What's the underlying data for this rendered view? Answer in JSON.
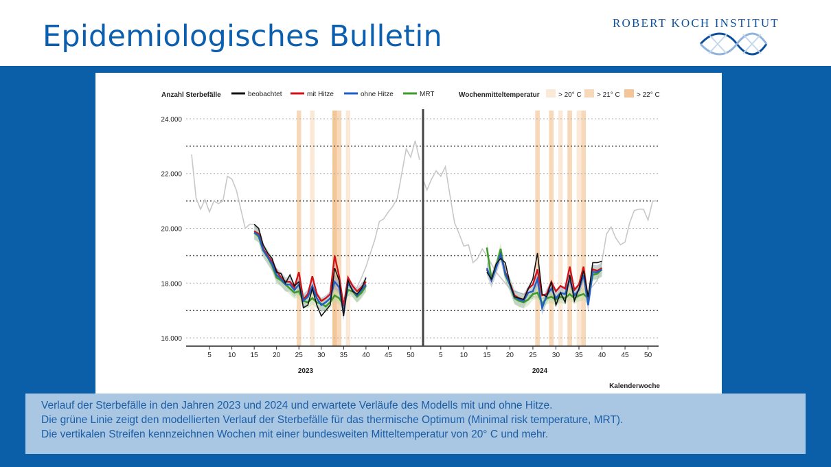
{
  "header": {
    "title": "Epidemiologisches Bulletin",
    "logo_text": "ROBERT KOCH INSTITUT"
  },
  "colors": {
    "title_blue": "#0b5fae",
    "band_blue": "#0a5fa8",
    "caption_bg": "#a9c6e2",
    "observed": "#111111",
    "with_heat": "#d0121b",
    "without_heat": "#1f5fc4",
    "mrt": "#3f9a2c",
    "history": "#c8c8c8",
    "stripe_20": "#fbe9d8",
    "stripe_21": "#f7d8b8",
    "stripe_22": "#f3c699"
  },
  "caption": {
    "line1": "Verlauf der Sterbefälle in den Jahren 2023 und 2024 und erwartete Verläufe des Modells mit und ohne Hitze.",
    "line2": "Die grüne Linie zeigt den modellierten Verlauf der Sterbefälle für das thermische Optimum (Minimal risk temperature, MRT).",
    "line3": "Die vertikalen Streifen kennzeichnen Wochen mit einer bundesweiten Mitteltemperatur von 20° C und mehr."
  },
  "chart_data": {
    "type": "line",
    "ylabel": "Anzahl Sterbefälle",
    "xlabel": "Kalenderwoche",
    "ylim": [
      15700,
      24300
    ],
    "yticks": [
      16000,
      18000,
      20000,
      22000,
      24000
    ],
    "ytick_labels": [
      "16.000",
      "18.000",
      "20.000",
      "22.000",
      "24.000"
    ],
    "legend": {
      "observed": "beobachtet",
      "with_heat": "mit Hitze",
      "without_heat": "ohne Hitze",
      "mrt": "MRT",
      "temp_title": "Wochenmitteltemperatur",
      "t20": "> 20° C",
      "t21": "> 21° C",
      "t22": "> 22° C"
    },
    "panels": [
      {
        "year": "2023",
        "xticks": [
          5,
          10,
          15,
          20,
          25,
          30,
          35,
          40,
          45,
          50
        ],
        "history_weeks": [
          1,
          2,
          3,
          4,
          5,
          6,
          7,
          8,
          9,
          10,
          11,
          12,
          13,
          14,
          15,
          16,
          17,
          18,
          19,
          20,
          21,
          22,
          23,
          24,
          25,
          26,
          27,
          28,
          29,
          30,
          31,
          32,
          33,
          34,
          35,
          36,
          37,
          38,
          39,
          40,
          41,
          42,
          43,
          44,
          45,
          46,
          47,
          48,
          49,
          50,
          51,
          52
        ],
        "history": [
          22700,
          21100,
          20700,
          21050,
          20600,
          21000,
          20900,
          21000,
          21900,
          21800,
          21400,
          20700,
          20000,
          20150,
          20150,
          19900,
          19300,
          19000,
          18500,
          18350,
          18250,
          18000,
          17800,
          17700,
          17600,
          17550,
          17500,
          17400,
          17400,
          17350,
          17350,
          17400,
          17500,
          17500,
          17450,
          17550,
          17700,
          17850,
          18200,
          18600,
          19100,
          19600,
          20250,
          20350,
          20600,
          20800,
          21100,
          22000,
          22900,
          22600,
          23200,
          22500
        ],
        "weeks": [
          15,
          16,
          17,
          18,
          19,
          20,
          21,
          22,
          23,
          24,
          25,
          26,
          27,
          28,
          29,
          30,
          31,
          32,
          33,
          34,
          35,
          36,
          37,
          38,
          39,
          40
        ],
        "observed": [
          20150,
          20000,
          19400,
          19100,
          18900,
          18400,
          18350,
          18000,
          18300,
          17900,
          18050,
          17100,
          17200,
          17800,
          17200,
          16800,
          17000,
          17200,
          18550,
          18100,
          16800,
          18100,
          17700,
          17600,
          17800,
          18200
        ],
        "with_heat": [
          19900,
          19800,
          19250,
          19000,
          18800,
          18450,
          18200,
          18050,
          18050,
          17850,
          18400,
          17400,
          17600,
          18250,
          17600,
          17350,
          17450,
          17600,
          19000,
          18250,
          17150,
          18200,
          17900,
          17700,
          17850,
          18050
        ],
        "without_heat": [
          19850,
          19750,
          19200,
          18950,
          18700,
          18300,
          18150,
          17950,
          17950,
          17750,
          17950,
          17350,
          17500,
          17900,
          17450,
          17200,
          17300,
          17450,
          18050,
          17850,
          16900,
          18000,
          17750,
          17550,
          17750,
          17950
        ],
        "mrt": [
          19850,
          19700,
          19200,
          18950,
          18650,
          18200,
          18100,
          17950,
          17800,
          17650,
          17700,
          17350,
          17300,
          17450,
          17300,
          17250,
          17150,
          17300,
          17550,
          17450,
          17200,
          17750,
          17700,
          17500,
          17650,
          17900
        ],
        "stripes": [
          {
            "week": 25,
            "level": 21
          },
          {
            "week": 28,
            "level": 20
          },
          {
            "week": 33,
            "level": 22
          },
          {
            "week": 34,
            "level": 21
          },
          {
            "week": 36,
            "level": 20
          }
        ]
      },
      {
        "year": "2024",
        "xticks": [
          5,
          10,
          15,
          20,
          25,
          30,
          35,
          40,
          45,
          50
        ],
        "history_weeks": [
          1,
          2,
          3,
          4,
          5,
          6,
          7,
          8,
          9,
          10,
          11,
          12,
          13,
          14,
          15,
          16,
          17,
          18,
          19,
          20,
          21,
          22,
          23,
          24,
          25,
          26,
          27,
          28,
          29,
          30,
          31,
          32,
          33,
          34,
          35,
          36,
          37,
          38,
          39,
          40,
          41,
          42,
          43,
          44,
          45,
          46,
          47,
          48,
          49,
          50,
          51,
          52
        ],
        "history": [
          21850,
          21400,
          21800,
          22100,
          21900,
          22250,
          21200,
          20200,
          19800,
          19350,
          19400,
          18750,
          18900,
          19250,
          19000,
          18700,
          18400,
          18200,
          18000,
          17800,
          17700,
          17650,
          17600,
          17550,
          17500,
          17500,
          17450,
          17450,
          17400,
          17450,
          17500,
          17500,
          17550,
          17550,
          17500,
          17600,
          17700,
          17900,
          18100,
          18800,
          19800,
          20050,
          19650,
          19400,
          19500,
          20200,
          20650,
          20700,
          20700,
          20300,
          21000,
          21000
        ],
        "weeks": [
          15,
          16,
          17,
          18,
          19,
          20,
          21,
          22,
          23,
          24,
          25,
          26,
          27,
          28,
          29,
          30,
          31,
          32,
          33,
          34,
          35,
          36,
          37,
          38,
          39,
          40
        ],
        "observed": [
          18400,
          18150,
          18700,
          18900,
          18750,
          18000,
          17500,
          17450,
          17400,
          17800,
          18150,
          19100,
          17600,
          17500,
          18050,
          17200,
          17650,
          17300,
          18300,
          17350,
          17800,
          18450,
          17500,
          18750,
          18750,
          18800
        ],
        "with_heat": [
          18500,
          18100,
          18550,
          19050,
          18400,
          18000,
          17550,
          17450,
          17400,
          17800,
          17950,
          18500,
          17550,
          17600,
          18050,
          17700,
          17900,
          17800,
          18600,
          17750,
          17950,
          18600,
          17400,
          18500,
          18450,
          18550
        ],
        "without_heat": [
          18550,
          18100,
          18550,
          19050,
          18350,
          17950,
          17500,
          17400,
          17350,
          17650,
          17700,
          18150,
          17100,
          17550,
          17800,
          17450,
          17650,
          17600,
          18150,
          17550,
          17750,
          18300,
          17200,
          18400,
          18400,
          18500
        ],
        "mrt": [
          19300,
          18150,
          18600,
          19250,
          18300,
          17950,
          17450,
          17350,
          17300,
          17400,
          17600,
          17650,
          17250,
          17450,
          17500,
          17400,
          17500,
          17450,
          17600,
          17450,
          17550,
          17600,
          17450,
          18300,
          18350,
          18500
        ],
        "stripes": [
          {
            "week": 26,
            "level": 21
          },
          {
            "week": 29,
            "level": 21
          },
          {
            "week": 31,
            "level": 20
          },
          {
            "week": 33,
            "level": 21
          },
          {
            "week": 35,
            "level": 20
          },
          {
            "week": 36,
            "level": 21
          }
        ]
      }
    ]
  }
}
